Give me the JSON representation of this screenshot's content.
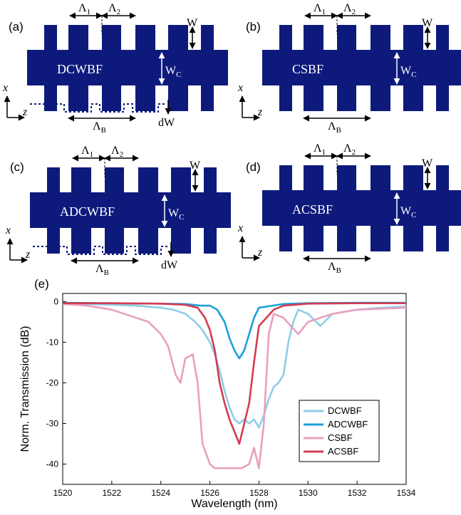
{
  "panels": [
    {
      "letter": "(a)",
      "name": "DCWBF",
      "lambda1": "Λ",
      "lambda1_sub": "1",
      "lambda2": "Λ",
      "lambda2_sub": "2",
      "lambdaB": "Λ",
      "lambdaB_sub": "B",
      "w": "W",
      "wc": "W",
      "wc_sub": "C",
      "dw": "dW"
    },
    {
      "letter": "(b)",
      "name": "CSBF",
      "lambda1": "Λ",
      "lambda1_sub": "1",
      "lambda2": "Λ",
      "lambda2_sub": "2",
      "lambdaB": "Λ",
      "lambdaB_sub": "B",
      "w": "W",
      "wc": "W",
      "wc_sub": "C"
    },
    {
      "letter": "(c)",
      "name": "ADCWBF",
      "lambda1": "Λ",
      "lambda1_sub": "1",
      "lambda2": "Λ",
      "lambda2_sub": "2",
      "lambdaB": "Λ",
      "lambdaB_sub": "B",
      "w": "W",
      "wc": "W",
      "wc_sub": "C",
      "dw": "dW"
    },
    {
      "letter": "(d)",
      "name": "ACSBF",
      "lambda1": "Λ",
      "lambda1_sub": "1",
      "lambda2": "Λ",
      "lambda2_sub": "2",
      "lambdaB": "Λ",
      "lambdaB_sub": "B",
      "w": "W",
      "wc": "W",
      "wc_sub": "C"
    }
  ],
  "coord": {
    "x": "x",
    "z": "z"
  },
  "colors": {
    "waveguide": "#0d1a7c"
  },
  "chart_data": {
    "type": "line",
    "panel_letter": "(e)",
    "xlabel": "Wavelength (nm)",
    "ylabel": "Norm. Transmission (dB)",
    "xlim": [
      1520,
      1534
    ],
    "ylim": [
      -45,
      2
    ],
    "xticks": [
      1520,
      1522,
      1524,
      1526,
      1528,
      1530,
      1532,
      1534
    ],
    "yticks": [
      0,
      -10,
      -20,
      -30,
      -40
    ],
    "legend_position": "bottom-right",
    "series": [
      {
        "name": "DCWBF",
        "color": "#8ecde6",
        "x": [
          1520,
          1521,
          1522,
          1523,
          1524,
          1524.5,
          1525,
          1525.4,
          1525.7,
          1526,
          1526.2,
          1526.4,
          1526.6,
          1526.8,
          1527,
          1527.2,
          1527.4,
          1527.6,
          1527.8,
          1528,
          1528.2,
          1528.4,
          1528.6,
          1528.8,
          1529,
          1529.2,
          1529.4,
          1529.6,
          1530,
          1530.5,
          1531,
          1532,
          1533,
          1534
        ],
        "y": [
          -0.5,
          -0.6,
          -0.8,
          -1,
          -1.5,
          -2,
          -3,
          -5,
          -7,
          -10,
          -13,
          -17,
          -22,
          -26,
          -29,
          -30,
          -29,
          -30,
          -29,
          -31,
          -28,
          -24,
          -21,
          -20,
          -18,
          -10,
          -5,
          -2,
          -3,
          -6,
          -3,
          -2,
          -1.5,
          -1.2
        ]
      },
      {
        "name": "ADCWBF",
        "color": "#1ca0d8",
        "x": [
          1520,
          1522,
          1524,
          1525,
          1525.6,
          1526,
          1526.3,
          1526.6,
          1526.8,
          1527,
          1527.2,
          1527.4,
          1527.6,
          1527.8,
          1528,
          1529,
          1530,
          1532,
          1534
        ],
        "y": [
          -0.3,
          -0.4,
          -0.5,
          -0.6,
          -1,
          -1,
          -2,
          -5,
          -9,
          -12,
          -14,
          -12,
          -8,
          -4,
          -1.5,
          -0.6,
          -0.4,
          -0.3,
          -0.3
        ]
      },
      {
        "name": "CSBF",
        "color": "#e8a0bf",
        "x": [
          1520,
          1521,
          1522,
          1523,
          1523.5,
          1524,
          1524.3,
          1524.6,
          1524.8,
          1525,
          1525.3,
          1525.5,
          1525.7,
          1526,
          1526.2,
          1526.5,
          1527,
          1527.3,
          1527.6,
          1527.8,
          1528,
          1528.2,
          1528.4,
          1528.6,
          1529,
          1529.3,
          1529.6,
          1530,
          1531,
          1532,
          1534
        ],
        "y": [
          -0.6,
          -1,
          -2,
          -4,
          -5,
          -8,
          -11,
          -18,
          -20,
          -14,
          -13,
          -20,
          -35,
          -40,
          -41,
          -41,
          -41,
          -41,
          -40,
          -36,
          -41,
          -30,
          -8,
          -3,
          -4,
          -6,
          -8,
          -5,
          -3,
          -2,
          -1.5
        ]
      },
      {
        "name": "ACSBF",
        "color": "#d43b52",
        "x": [
          1520,
          1522,
          1524,
          1525,
          1525.5,
          1525.8,
          1526,
          1526.2,
          1526.4,
          1526.6,
          1526.8,
          1527,
          1527.2,
          1527.4,
          1527.6,
          1527.8,
          1528,
          1528.3,
          1528.6,
          1529,
          1530,
          1532,
          1534
        ],
        "y": [
          -0.4,
          -0.4,
          -0.5,
          -0.8,
          -1.5,
          -4,
          -7,
          -12,
          -20,
          -25,
          -29,
          -32,
          -35,
          -30,
          -25,
          -15,
          -6,
          -4,
          -2,
          -1,
          -0.5,
          -0.4,
          -0.4
        ]
      }
    ]
  }
}
